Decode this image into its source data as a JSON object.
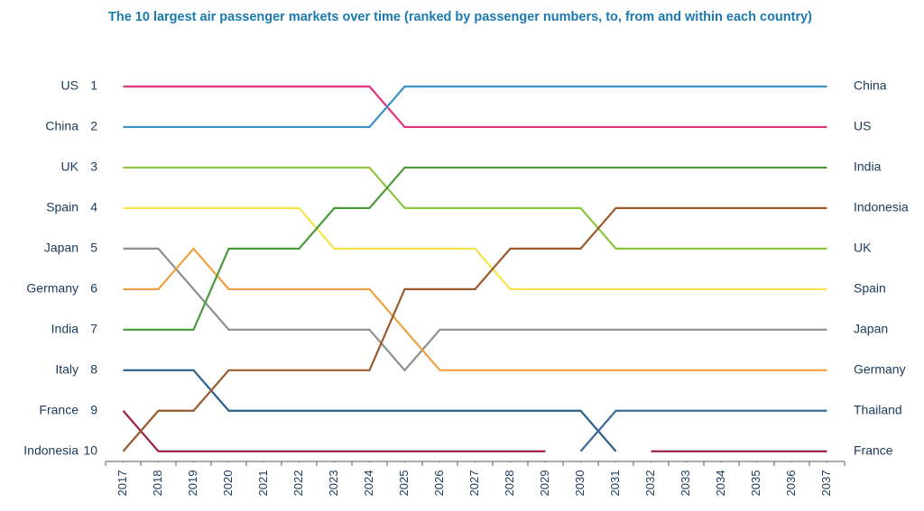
{
  "chart_data": {
    "type": "bump",
    "title": "The 10 largest air passenger markets over time (ranked by passenger numbers, to, from and within each country)",
    "x": [
      2017,
      2018,
      2019,
      2020,
      2021,
      2022,
      2023,
      2024,
      2025,
      2026,
      2027,
      2028,
      2029,
      2030,
      2031,
      2032,
      2033,
      2034,
      2035,
      2036,
      2037
    ],
    "xlim": [
      2016.5,
      2037.5
    ],
    "xticks": [
      2017,
      2018,
      2019,
      2020,
      2021,
      2022,
      2023,
      2024,
      2025,
      2026,
      2027,
      2028,
      2029,
      2030,
      2031,
      2032,
      2033,
      2034,
      2035,
      2036,
      2037
    ],
    "ylim": [
      10.25,
      0
    ],
    "yticks": [
      1,
      2,
      3,
      4,
      5,
      6,
      7,
      8,
      9,
      10
    ],
    "left_labels": [
      "US",
      "China",
      "UK",
      "Spain",
      "Japan",
      "Germany",
      "India",
      "Italy",
      "France",
      "Indonesia"
    ],
    "right_labels": [
      "China",
      "US",
      "India",
      "Indonesia",
      "UK",
      "Spain",
      "Japan",
      "Germany",
      "Thailand",
      "France"
    ],
    "series": [
      {
        "name": "US",
        "color": "#e0337c",
        "values": [
          1,
          1,
          1,
          1,
          1,
          1,
          1,
          1,
          2,
          2,
          2,
          2,
          2,
          2,
          2,
          2,
          2,
          2,
          2,
          2,
          2
        ]
      },
      {
        "name": "China",
        "color": "#3b90c9",
        "values": [
          2,
          2,
          2,
          2,
          2,
          2,
          2,
          2,
          1,
          1,
          1,
          1,
          1,
          1,
          1,
          1,
          1,
          1,
          1,
          1,
          1
        ]
      },
      {
        "name": "UK",
        "color": "#8dc641",
        "values": [
          3,
          3,
          3,
          3,
          3,
          3,
          3,
          3,
          4,
          4,
          4,
          4,
          4,
          4,
          5,
          5,
          5,
          5,
          5,
          5,
          5
        ]
      },
      {
        "name": "Spain",
        "color": "#f6e44c",
        "values": [
          4,
          4,
          4,
          4,
          4,
          4,
          5,
          5,
          5,
          5,
          5,
          6,
          6,
          6,
          6,
          6,
          6,
          6,
          6,
          6,
          6
        ]
      },
      {
        "name": "Japan",
        "color": "#8e8e8e",
        "values": [
          5,
          5,
          6,
          7,
          7,
          7,
          7,
          7,
          8,
          7,
          7,
          7,
          7,
          7,
          7,
          7,
          7,
          7,
          7,
          7,
          7
        ]
      },
      {
        "name": "Germany",
        "color": "#f0a043",
        "values": [
          6,
          6,
          5,
          6,
          6,
          6,
          6,
          6,
          7,
          8,
          8,
          8,
          8,
          8,
          8,
          8,
          8,
          8,
          8,
          8,
          8
        ]
      },
      {
        "name": "India",
        "color": "#4a9a3c",
        "values": [
          7,
          7,
          7,
          5,
          5,
          5,
          4,
          4,
          3,
          3,
          3,
          3,
          3,
          3,
          3,
          3,
          3,
          3,
          3,
          3,
          3
        ]
      },
      {
        "name": "Italy",
        "color": "#2b5f8c",
        "values": [
          8,
          8,
          8,
          9,
          9,
          9,
          9,
          9,
          9,
          9,
          9,
          9,
          9,
          9,
          10,
          null,
          null,
          null,
          null,
          null,
          null
        ]
      },
      {
        "name": "France",
        "color": "#9b2245",
        "values": [
          9,
          10,
          10,
          10,
          10,
          10,
          10,
          10,
          10,
          10,
          10,
          10,
          10,
          null,
          null,
          10,
          10,
          10,
          10,
          10,
          10
        ]
      },
      {
        "name": "Indonesia",
        "color": "#9a5a2c",
        "values": [
          10,
          9,
          9,
          8,
          8,
          8,
          8,
          8,
          6,
          6,
          6,
          5,
          5,
          5,
          4,
          4,
          4,
          4,
          4,
          4,
          4
        ]
      },
      {
        "name": "Thailand",
        "color": "#3b6b9c",
        "values": [
          null,
          null,
          null,
          null,
          null,
          null,
          null,
          null,
          null,
          null,
          null,
          null,
          null,
          10,
          9,
          9,
          9,
          9,
          9,
          9,
          9
        ]
      }
    ]
  }
}
